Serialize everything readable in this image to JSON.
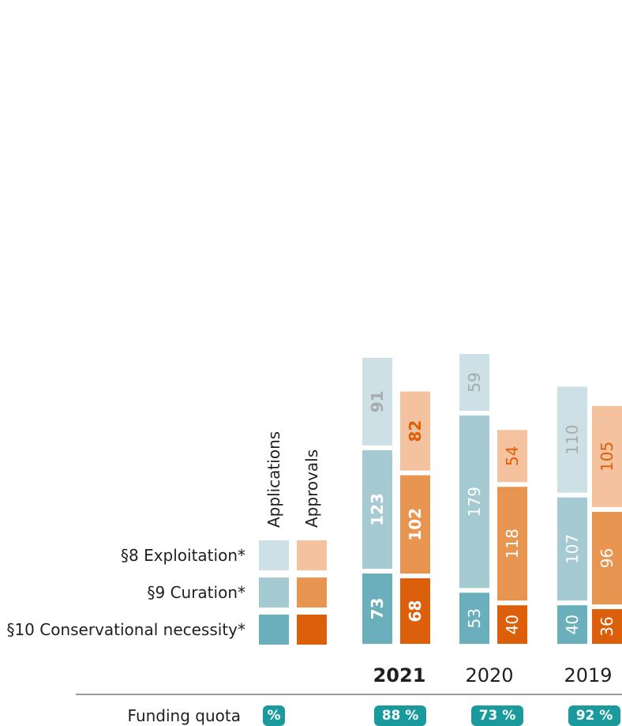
{
  "chart_data": {
    "type": "bar",
    "stacked": true,
    "categories": [
      "2021",
      "2020",
      "2019"
    ],
    "highlight_category": "2021",
    "series": [
      {
        "name": "Applications",
        "segments": [
          {
            "name": "§10 Conservational necessity*",
            "values": [
              73,
              53,
              40
            ]
          },
          {
            "name": "§9 Curation*",
            "values": [
              123,
              179,
              107
            ]
          },
          {
            "name": "§8 Exploitation*",
            "values": [
              91,
              59,
              110
            ]
          }
        ]
      },
      {
        "name": "Approvals",
        "segments": [
          {
            "name": "§10 Conservational necessity*",
            "values": [
              68,
              40,
              36
            ]
          },
          {
            "name": "§9 Curation*",
            "values": [
              102,
              118,
              96
            ]
          },
          {
            "name": "§8 Exploitation*",
            "values": [
              82,
              54,
              105
            ]
          }
        ]
      }
    ],
    "legend": {
      "placement": "bottom-left",
      "column_labels": [
        "Applications",
        "Approvals"
      ],
      "rows": [
        "§8 Exploitation*",
        "§9 Curation*",
        "§10 Conservational necessity*"
      ]
    },
    "funding_quota": {
      "label": "Funding quota",
      "unit_badge": "%",
      "values": [
        "88 %",
        "73 %",
        "92 %"
      ]
    },
    "colors": {
      "applications": [
        "#6aafbb",
        "#a5cad2",
        "#cde0e5"
      ],
      "approvals": [
        "#dc5f0c",
        "#e89552",
        "#f5c29f"
      ],
      "applications_text": [
        "#ffffff",
        "#ffffff",
        "#a7abab"
      ],
      "approvals_text": [
        "#ffffff",
        "#ffffff",
        "#dc5f0c"
      ],
      "badge": "#1a9a9d",
      "text": "#1f1f1f"
    }
  }
}
